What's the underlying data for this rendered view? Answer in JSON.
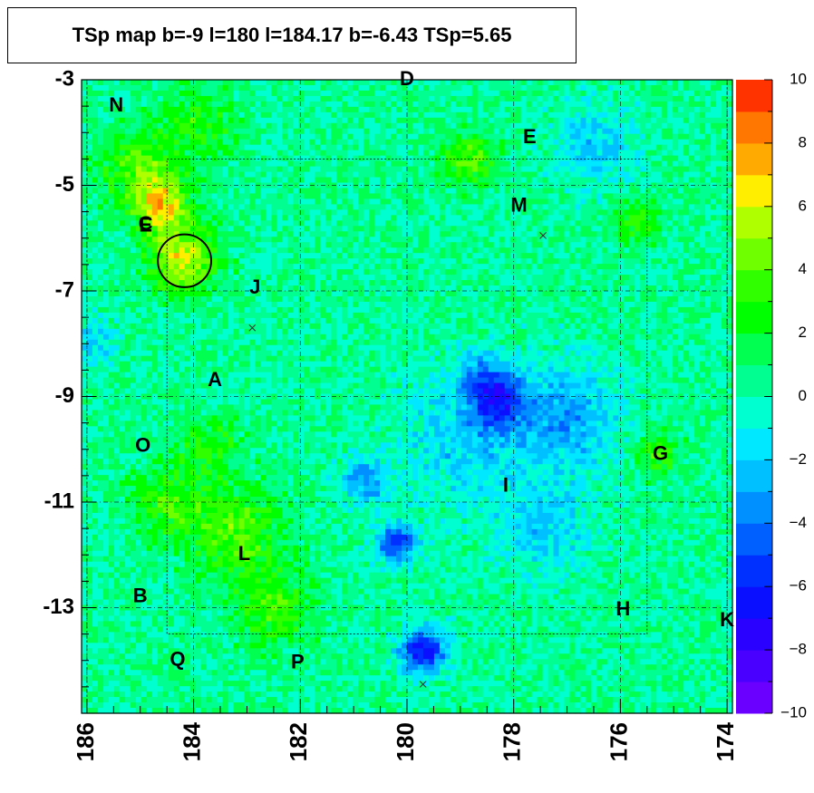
{
  "chart_data": {
    "type": "heatmap",
    "title": "TSp map b=-9 l=180 l=184.17 b=-6.43 TSp=5.65",
    "x_ticks": [
      "186",
      "184",
      "182",
      "180",
      "178",
      "176",
      "174"
    ],
    "x_tick_values": [
      186,
      184,
      182,
      180,
      178,
      176,
      174
    ],
    "y_ticks": [
      "-3",
      "-5",
      "-7",
      "-9",
      "-11",
      "-13"
    ],
    "y_tick_values": [
      -3,
      -5,
      -7,
      -9,
      -11,
      -13
    ],
    "xlim": [
      186.1,
      173.9
    ],
    "ylim": [
      -3,
      -15
    ],
    "x_axis_reversed": true,
    "colorbar": {
      "range": [
        -10,
        10
      ],
      "ticks": [
        "10",
        "8",
        "6",
        "4",
        "2",
        "0",
        "−2",
        "−4",
        "−6",
        "−8",
        "−10"
      ],
      "tick_values": [
        10,
        8,
        6,
        4,
        2,
        0,
        -2,
        -4,
        -6,
        -8,
        -10
      ],
      "levels": 20,
      "colors": [
        "#6a00ff",
        "#4a00ff",
        "#2a00ff",
        "#0a10ff",
        "#0030ff",
        "#0060ff",
        "#0090ff",
        "#00c0ff",
        "#00e8ff",
        "#00ffd0",
        "#00ff90",
        "#00ff50",
        "#00ff00",
        "#30ff00",
        "#70ff00",
        "#b0ff00",
        "#ffee00",
        "#ffaa00",
        "#ff7700",
        "#ff3300"
      ]
    },
    "sources": [
      {
        "label": "N",
        "l": 185.45,
        "b": -3.5
      },
      {
        "label": "D",
        "l": 180.0,
        "b": -3.0
      },
      {
        "label": "E",
        "l": 177.7,
        "b": -4.1
      },
      {
        "label": "M",
        "l": 177.9,
        "b": -5.4
      },
      {
        "label": "C",
        "l": 184.9,
        "b": -5.75
      },
      {
        "label": "E",
        "l": 184.9,
        "b": -5.78
      },
      {
        "label": "J",
        "l": 182.85,
        "b": -6.95
      },
      {
        "label": "A",
        "l": 183.6,
        "b": -8.7
      },
      {
        "label": "O",
        "l": 184.95,
        "b": -9.95
      },
      {
        "label": "G",
        "l": 175.25,
        "b": -10.1
      },
      {
        "label": "I",
        "l": 178.15,
        "b": -10.7
      },
      {
        "label": "L",
        "l": 183.05,
        "b": -12.0
      },
      {
        "label": "B",
        "l": 185.0,
        "b": -12.8
      },
      {
        "label": "H",
        "l": 175.95,
        "b": -13.05
      },
      {
        "label": "K",
        "l": 174.0,
        "b": -13.25
      },
      {
        "label": "Q",
        "l": 184.3,
        "b": -14.0
      },
      {
        "label": "P",
        "l": 182.05,
        "b": -14.05
      }
    ],
    "markers": [
      {
        "l": 177.45,
        "b": -5.95
      },
      {
        "l": 182.9,
        "b": -7.7
      },
      {
        "l": 179.7,
        "b": -14.45
      }
    ],
    "circle": {
      "l": 184.17,
      "b": -6.43,
      "radius_deg": 0.5
    },
    "hotspots": [
      {
        "l": 184.2,
        "b": -6.4,
        "v": 5.7,
        "s": 0.45
      },
      {
        "l": 184.6,
        "b": -5.4,
        "v": 5.5,
        "s": 0.35
      },
      {
        "l": 185.0,
        "b": -4.7,
        "v": 3.5,
        "s": 0.5
      },
      {
        "l": 183.9,
        "b": -3.8,
        "v": 2.5,
        "s": 0.5
      },
      {
        "l": 178.8,
        "b": -4.5,
        "v": 3.8,
        "s": 0.35
      },
      {
        "l": 183.2,
        "b": -11.6,
        "v": 3.5,
        "s": 0.6
      },
      {
        "l": 184.5,
        "b": -11.0,
        "v": 2.8,
        "s": 0.5
      },
      {
        "l": 183.7,
        "b": -10.0,
        "v": 2.5,
        "s": 0.4
      },
      {
        "l": 182.5,
        "b": -13.0,
        "v": 3.0,
        "s": 0.5
      },
      {
        "l": 175.6,
        "b": -5.7,
        "v": 3.0,
        "s": 0.3
      },
      {
        "l": 175.3,
        "b": -10.1,
        "v": 3.0,
        "s": 0.3
      },
      {
        "l": 180.2,
        "b": -11.8,
        "v": -6.5,
        "s": 0.25
      },
      {
        "l": 179.7,
        "b": -13.8,
        "v": -7.5,
        "s": 0.3
      },
      {
        "l": 178.3,
        "b": -9.1,
        "v": -5.0,
        "s": 0.35
      },
      {
        "l": 177.0,
        "b": -9.4,
        "v": -3.5,
        "s": 0.7
      },
      {
        "l": 178.9,
        "b": -9.8,
        "v": -2.5,
        "s": 0.8
      },
      {
        "l": 180.8,
        "b": -10.6,
        "v": -4.0,
        "s": 0.3
      },
      {
        "l": 178.6,
        "b": -8.6,
        "v": -3.0,
        "s": 0.35
      },
      {
        "l": 176.5,
        "b": -4.2,
        "v": -2.5,
        "s": 0.5
      },
      {
        "l": 185.9,
        "b": -8.0,
        "v": -2.5,
        "s": 0.3
      },
      {
        "l": 177.5,
        "b": -11.5,
        "v": -2.5,
        "s": 0.6
      }
    ],
    "grid": true,
    "legend": "colorbar right"
  }
}
